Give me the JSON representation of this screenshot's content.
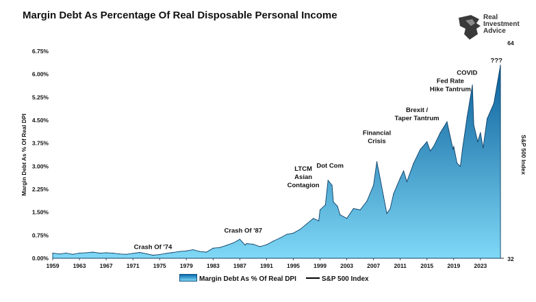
{
  "title": "Margin Debt As Percentage Of Real Disposable Personal Income",
  "logo": {
    "name": "Real Investment Advice",
    "lines": [
      "Real",
      "Investment",
      "Advice"
    ]
  },
  "colors": {
    "area_top": "#0a5f9a",
    "area_bottom": "#7fd8f6",
    "outline": "#0d3f66",
    "sp_line": "#000000"
  },
  "chart_data": {
    "type": "area",
    "ylabel": "Margin Debt As % Of Real DPI",
    "y2label": "S&P 500 Index",
    "ylim": [
      0,
      6.75
    ],
    "yticks": [
      "0.00%",
      "0.75%",
      "1.50%",
      "2.25%",
      "3.00%",
      "3.75%",
      "4.50%",
      "5.25%",
      "6.00%",
      "6.75%"
    ],
    "y2ticks": [
      "32",
      "64"
    ],
    "xlim": [
      1959,
      2026.5
    ],
    "xticks": [
      "1959",
      "1963",
      "1967",
      "1971",
      "1975",
      "1979",
      "1983",
      "1987",
      "1991",
      "1995",
      "1999",
      "2003",
      "2007",
      "2011",
      "2015",
      "2019",
      "2023"
    ],
    "grid": false,
    "legend_position": "bottom",
    "series": [
      {
        "name": "Margin Debt As % Of Real DPI",
        "x": [
          1959,
          1960,
          1961,
          1962,
          1963,
          1964,
          1965,
          1966,
          1967,
          1968,
          1969,
          1970,
          1971,
          1972,
          1973,
          1974,
          1975,
          1976,
          1977,
          1978,
          1979,
          1980,
          1981,
          1982,
          1983,
          1984,
          1985,
          1986,
          1987,
          1987.8,
          1988,
          1989,
          1990,
          1991,
          1992,
          1993,
          1994,
          1995,
          1996,
          1997,
          1998,
          1998.8,
          1999,
          1999.8,
          2000.2,
          2000.8,
          2001,
          2001.6,
          2002,
          2003,
          2004,
          2005,
          2006,
          2007,
          2007.5,
          2008,
          2008.5,
          2009,
          2009.5,
          2010,
          2011,
          2011.5,
          2012,
          2013,
          2014,
          2015,
          2015.5,
          2016,
          2017,
          2018,
          2018.9,
          2019,
          2019.5,
          2020,
          2020.3,
          2021,
          2021.8,
          2022,
          2022.6,
          2023,
          2023.4,
          2024,
          2025,
          2026
        ],
        "values": [
          0.17,
          0.14,
          0.17,
          0.13,
          0.17,
          0.18,
          0.2,
          0.17,
          0.18,
          0.17,
          0.14,
          0.13,
          0.16,
          0.19,
          0.15,
          0.1,
          0.12,
          0.16,
          0.19,
          0.22,
          0.24,
          0.28,
          0.22,
          0.2,
          0.33,
          0.35,
          0.42,
          0.5,
          0.62,
          0.43,
          0.48,
          0.46,
          0.38,
          0.44,
          0.56,
          0.66,
          0.78,
          0.82,
          0.94,
          1.12,
          1.3,
          1.22,
          1.58,
          1.74,
          2.54,
          2.38,
          1.84,
          1.7,
          1.42,
          1.3,
          1.62,
          1.58,
          1.86,
          2.38,
          3.15,
          2.6,
          2.02,
          1.46,
          1.62,
          2.1,
          2.62,
          2.85,
          2.5,
          3.1,
          3.55,
          3.8,
          3.5,
          3.65,
          4.1,
          4.45,
          3.55,
          3.65,
          3.1,
          3.0,
          3.55,
          4.6,
          5.65,
          4.35,
          3.8,
          4.1,
          3.6,
          4.55,
          5.05,
          6.3
        ]
      }
    ],
    "annotations": [
      {
        "text": [
          "Crash Of '74"
        ],
        "x": 1974,
        "y": 0.3
      },
      {
        "text": [
          "Crash Of '87"
        ],
        "x": 1987.5,
        "y": 0.83
      },
      {
        "text": [
          "LTCM",
          "Asian",
          "Contagion"
        ],
        "x": 1996.5,
        "y": 2.32
      },
      {
        "text": [
          "Dot Com"
        ],
        "x": 2000.5,
        "y": 2.95
      },
      {
        "text": [
          "Financial",
          "Crisis"
        ],
        "x": 2007.5,
        "y": 3.75
      },
      {
        "text": [
          "Brexit /",
          "Taper Tantrum"
        ],
        "x": 2013.5,
        "y": 4.5
      },
      {
        "text": [
          "Fed Rate",
          "Hike Tantrum"
        ],
        "x": 2018.5,
        "y": 5.45
      },
      {
        "text": [
          "COVID"
        ],
        "x": 2021,
        "y": 5.98
      },
      {
        "text": [
          "???"
        ],
        "x": 2025.4,
        "y": 6.38
      }
    ]
  }
}
